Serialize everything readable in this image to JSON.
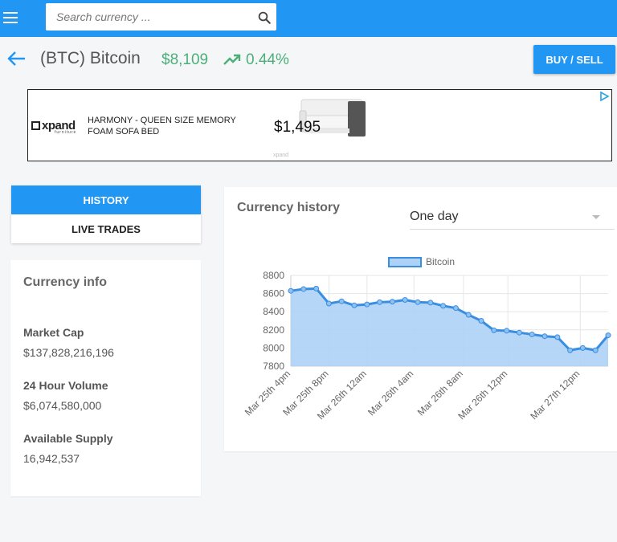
{
  "search": {
    "placeholder": "Search currency ..."
  },
  "header": {
    "title": "(BTC) Bitcoin",
    "price": "$8,109",
    "change": "0.44%",
    "buy_sell_label": "BUY / SELL"
  },
  "ad": {
    "brand": "xpand",
    "brand_sub": "furniture",
    "text": "HARMONY - QUEEN SIZE MEMORY FOAM SOFA BED",
    "price": "$1,495",
    "footer": "xpand"
  },
  "tabs": [
    {
      "label": "HISTORY",
      "active": true
    },
    {
      "label": "LIVE TRADES",
      "active": false
    }
  ],
  "info": {
    "title": "Currency info",
    "market_cap_label": "Market Cap",
    "market_cap": "$137,828,216,196",
    "volume_label": "24 Hour Volume",
    "volume": "$6,074,580,000",
    "supply_label": "Available Supply",
    "supply": "16,942,537"
  },
  "history": {
    "title": "Currency history",
    "range": "One day"
  },
  "colors": {
    "accent": "#2196f3",
    "positive": "#4caf7a",
    "line": "#3a8ee0",
    "fill": "#aed2f7"
  },
  "chart_data": {
    "type": "area",
    "legend": [
      "Bitcoin"
    ],
    "legend_position": "top",
    "ylim": [
      7800,
      8800
    ],
    "yticks": [
      7800,
      8000,
      8200,
      8400,
      8600,
      8800
    ],
    "xticks": [
      "Mar 25th 4pm",
      "Mar 25th 8pm",
      "Mar 26th 12am",
      "Mar 26th 4am",
      "Mar 26th 8am",
      "Mar 26th 12pm",
      "Mar 27th 12pm"
    ],
    "grid": true,
    "series": [
      {
        "name": "Bitcoin",
        "values": [
          8630,
          8650,
          8655,
          8490,
          8515,
          8470,
          8480,
          8505,
          8510,
          8530,
          8505,
          8500,
          8465,
          8440,
          8365,
          8300,
          8195,
          8190,
          8170,
          8150,
          8130,
          8120,
          7975,
          8000,
          7975,
          8140
        ]
      }
    ]
  }
}
